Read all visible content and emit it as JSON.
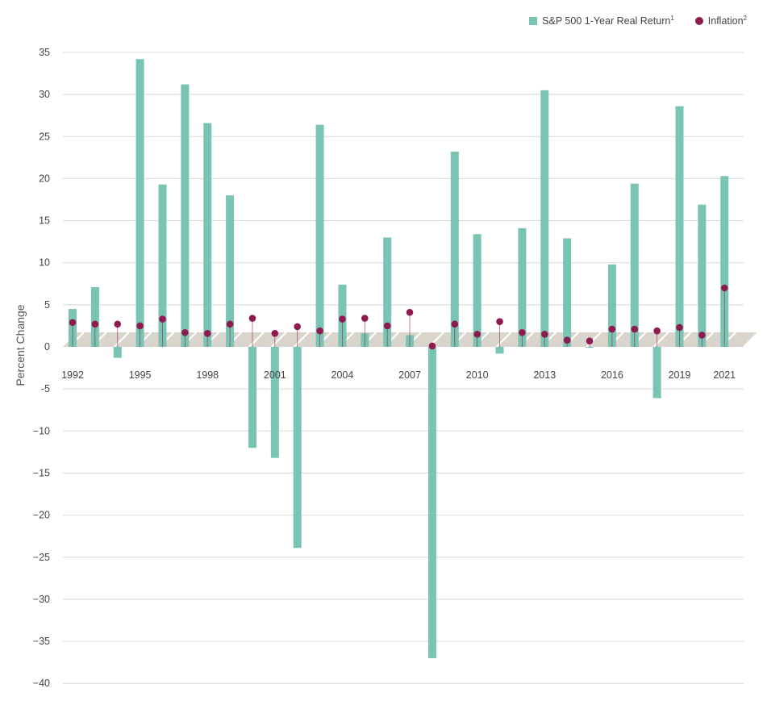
{
  "colors": {
    "bar": "#79c4b2",
    "dot": "#8e1a4f",
    "zero_band": "#d9d4cc",
    "grid": "#d8d8d8"
  },
  "legend": {
    "bar_label": "S&P 500 1-Year Real Return",
    "bar_sup": "1",
    "dot_label": "Inflation",
    "dot_sup": "2"
  },
  "chart_data": {
    "type": "bar",
    "ylabel": "Percent Change",
    "ylim": [
      -40,
      35
    ],
    "yticks": [
      "35",
      "30",
      "25",
      "20",
      "15",
      "10",
      "5",
      "0",
      "-5",
      "−10",
      "−15",
      "−20",
      "−25",
      "−30",
      "−35",
      "−40"
    ],
    "ytick_values": [
      35,
      30,
      25,
      20,
      15,
      10,
      5,
      0,
      -5,
      -10,
      -15,
      -20,
      -25,
      -30,
      -35,
      -40
    ],
    "x_tick_labels": [
      "1992",
      "1995",
      "1998",
      "2001",
      "2004",
      "2007",
      "2010",
      "2013",
      "2016",
      "2019",
      "2021"
    ],
    "categories": [
      "1992",
      "1993",
      "1994",
      "1995",
      "1996",
      "1997",
      "1998",
      "1999",
      "2000",
      "2001",
      "2002",
      "2003",
      "2004",
      "2005",
      "2006",
      "2007",
      "2008",
      "2009",
      "2010",
      "2011",
      "2012",
      "2013",
      "2014",
      "2015",
      "2016",
      "2017",
      "2018",
      "2019",
      "2020",
      "2021"
    ],
    "series": [
      {
        "name": "S&P 500 1-Year Real Return",
        "values": [
          4.5,
          7.1,
          -1.3,
          34.2,
          19.3,
          31.2,
          26.6,
          18.0,
          -12.0,
          -13.2,
          -23.9,
          26.4,
          7.4,
          1.6,
          13.0,
          1.4,
          -37.0,
          23.2,
          13.4,
          -0.8,
          14.1,
          30.5,
          12.9,
          -0.1,
          9.8,
          19.4,
          -6.1,
          28.6,
          16.9,
          20.3
        ]
      },
      {
        "name": "Inflation",
        "values": [
          2.9,
          2.7,
          2.7,
          2.5,
          3.3,
          1.7,
          1.6,
          2.7,
          3.4,
          1.6,
          2.4,
          1.9,
          3.3,
          3.4,
          2.5,
          4.1,
          0.1,
          2.7,
          1.5,
          3.0,
          1.7,
          1.5,
          0.8,
          0.7,
          2.1,
          2.1,
          1.9,
          2.3,
          1.4,
          7.0
        ]
      }
    ],
    "grid": true,
    "legend_position": "top-right"
  }
}
